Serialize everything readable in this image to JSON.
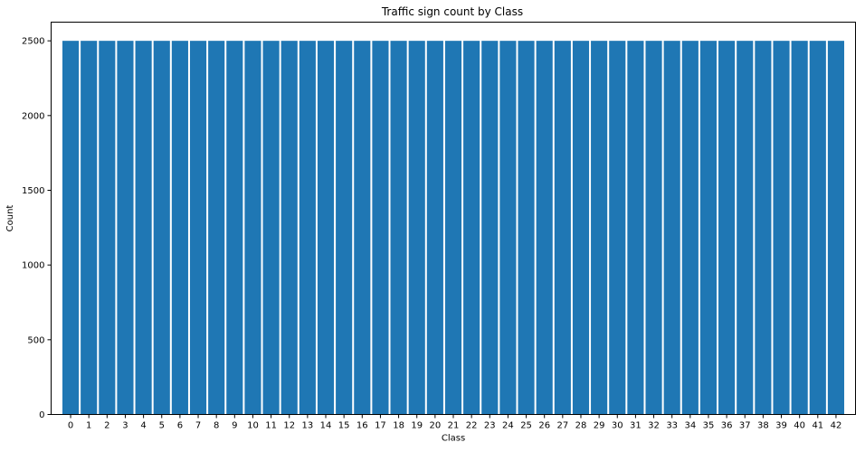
{
  "chart_data": {
    "type": "bar",
    "title": "Traffic sign count by Class",
    "xlabel": "Class",
    "ylabel": "Count",
    "categories": [
      "0",
      "1",
      "2",
      "3",
      "4",
      "5",
      "6",
      "7",
      "8",
      "9",
      "10",
      "11",
      "12",
      "13",
      "14",
      "15",
      "16",
      "17",
      "18",
      "19",
      "20",
      "21",
      "22",
      "23",
      "24",
      "25",
      "26",
      "27",
      "28",
      "29",
      "30",
      "31",
      "32",
      "33",
      "34",
      "35",
      "36",
      "37",
      "38",
      "39",
      "40",
      "41",
      "42"
    ],
    "values": [
      2500,
      2500,
      2500,
      2500,
      2500,
      2500,
      2500,
      2500,
      2500,
      2500,
      2500,
      2500,
      2500,
      2500,
      2500,
      2500,
      2500,
      2500,
      2500,
      2500,
      2500,
      2500,
      2500,
      2500,
      2500,
      2500,
      2500,
      2500,
      2500,
      2500,
      2500,
      2500,
      2500,
      2500,
      2500,
      2500,
      2500,
      2500,
      2500,
      2500,
      2500,
      2500,
      2500
    ],
    "ylim": [
      0,
      2625
    ],
    "yticks": [
      0,
      500,
      1000,
      1500,
      2000,
      2500
    ],
    "grid": false,
    "bar_color": "#1f77b4"
  }
}
